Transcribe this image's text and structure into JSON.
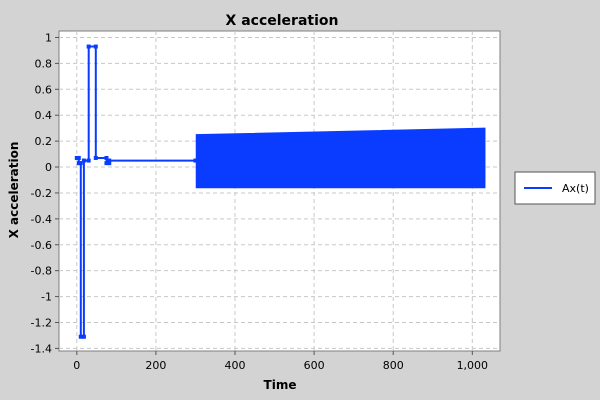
{
  "chart_data": {
    "type": "line",
    "title": "X acceleration",
    "xlabel": "Time",
    "ylabel": "X acceleration",
    "xlim": [
      -45,
      1070
    ],
    "ylim": [
      -1.42,
      1.05
    ],
    "x_ticks": [
      0,
      200,
      400,
      600,
      800,
      1000
    ],
    "x_tick_labels": [
      "0",
      "200",
      "400",
      "600",
      "800",
      "1,000"
    ],
    "y_ticks": [
      1,
      0.8,
      0.6,
      0.4,
      0.2,
      0,
      -0.2,
      -0.4,
      -0.6,
      -0.8,
      -1,
      -1.2,
      -1.4
    ],
    "y_tick_labels": [
      "1",
      "0.8",
      "0.6",
      "0.4",
      "0.2",
      "0",
      "-0.2",
      "-0.4",
      "-0.6",
      "-0.8",
      "-1",
      "-1.2",
      "-1.4"
    ],
    "grid": true,
    "legend_position": "right",
    "series": [
      {
        "name": "Ax(t)",
        "color": "#0a3cff",
        "x": [
          0,
          5,
          5,
          10,
          10,
          18,
          18,
          30,
          30,
          48,
          48,
          75,
          75,
          82,
          82,
          300
        ],
        "y": [
          0.07,
          0.07,
          0.03,
          0.03,
          -1.31,
          -1.31,
          0.05,
          0.05,
          0.93,
          0.93,
          0.07,
          0.07,
          0.03,
          0.03,
          0.05,
          0.05
        ]
      }
    ],
    "oscillation": {
      "x_start": 302,
      "x_end": 1032,
      "upper_start": 0.25,
      "upper_end": 0.3,
      "lower": -0.16
    }
  }
}
